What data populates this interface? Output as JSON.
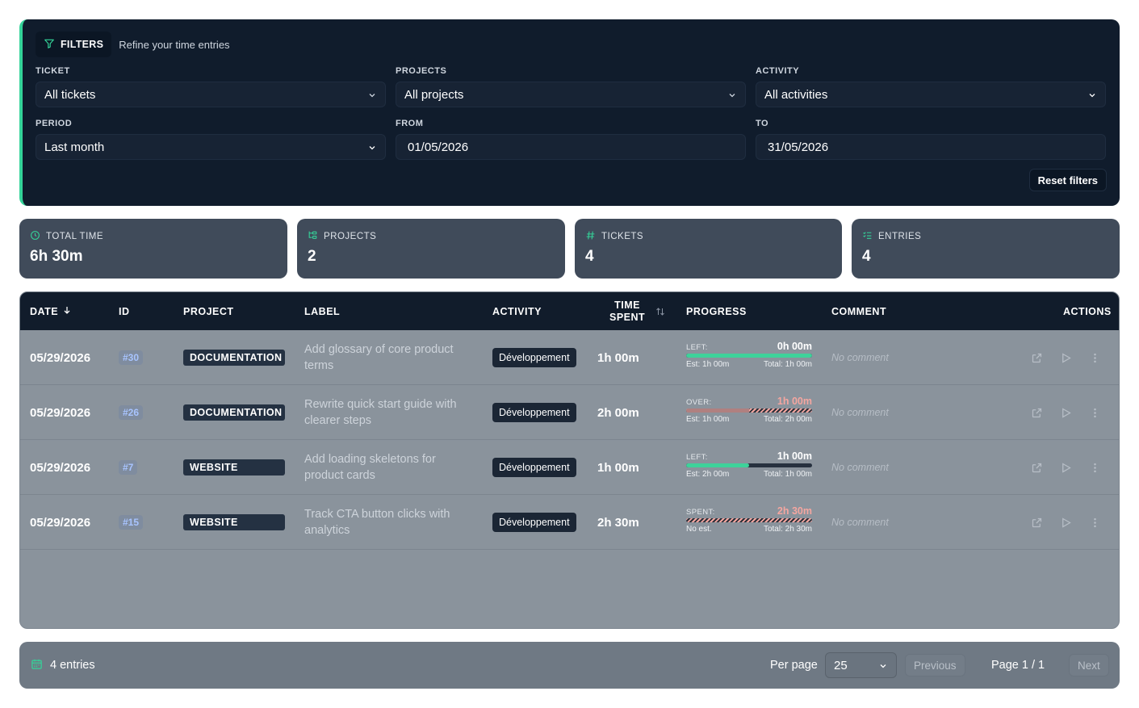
{
  "filters": {
    "title": "FILTERS",
    "subtitle": "Refine your time entries",
    "ticket_label": "TICKET",
    "ticket_value": "All tickets",
    "projects_label": "PROJECTS",
    "projects_value": "All projects",
    "activity_label": "ACTIVITY",
    "activity_value": "All activities",
    "period_label": "PERIOD",
    "period_value": "Last month",
    "from_label": "FROM",
    "from_value": "01/05/2026",
    "to_label": "TO",
    "to_value": "31/05/2026",
    "reset_label": "Reset filters"
  },
  "stats": [
    {
      "label": "TOTAL TIME",
      "value": "6h 30m"
    },
    {
      "label": "PROJECTS",
      "value": "2"
    },
    {
      "label": "TICKETS",
      "value": "4"
    },
    {
      "label": "ENTRIES",
      "value": "4"
    }
  ],
  "table": {
    "headers": {
      "date": "DATE",
      "id": "ID",
      "project": "PROJECT",
      "label": "LABEL",
      "activity": "ACTIVITY",
      "time_spent_1": "TIME",
      "time_spent_2": "SPENT",
      "progress": "PROGRESS",
      "comment": "COMMENT",
      "actions": "ACTIONS"
    },
    "rows": [
      {
        "date": "05/29/2026",
        "id": "#30",
        "project": "DOCUMENTATION",
        "label": "Add glossary of core product terms",
        "activity": "Développement",
        "spent": "1h 00m",
        "progress": {
          "key": "LEFT:",
          "value": "0h 00m",
          "state": "left",
          "fraction": 1.0,
          "est": "Est: 1h 00m",
          "total": "Total: 1h 00m"
        },
        "comment": "No comment"
      },
      {
        "date": "05/29/2026",
        "id": "#26",
        "project": "DOCUMENTATION",
        "label": "Rewrite quick start guide with clearer steps",
        "activity": "Développement",
        "spent": "2h 00m",
        "progress": {
          "key": "OVER:",
          "value": "1h 00m",
          "state": "over",
          "fraction": 0.5,
          "est": "Est: 1h 00m",
          "total": "Total: 2h 00m"
        },
        "comment": "No comment"
      },
      {
        "date": "05/29/2026",
        "id": "#7",
        "project": "WEBSITE",
        "label": "Add loading skeletons for product cards",
        "activity": "Développement",
        "spent": "1h 00m",
        "progress": {
          "key": "LEFT:",
          "value": "1h 00m",
          "state": "left",
          "fraction": 0.5,
          "est": "Est: 2h 00m",
          "total": "Total: 1h 00m"
        },
        "comment": "No comment"
      },
      {
        "date": "05/29/2026",
        "id": "#15",
        "project": "WEBSITE",
        "label": "Track CTA button clicks with analytics",
        "activity": "Développement",
        "spent": "2h 30m",
        "progress": {
          "key": "SPENT:",
          "value": "2h 30m",
          "state": "spent",
          "fraction": 0.0,
          "est": "No est.",
          "total": "Total: 2h 30m"
        },
        "comment": "No comment"
      }
    ]
  },
  "footer": {
    "entries_text": "4 entries",
    "per_page_label": "Per page",
    "per_page_value": "25",
    "previous_label": "Previous",
    "page_text": "Page 1 / 1",
    "next_label": "Next"
  },
  "colors": {
    "accent": "#34d399",
    "over": "#f4a6a0",
    "panel": "#101c2c"
  }
}
